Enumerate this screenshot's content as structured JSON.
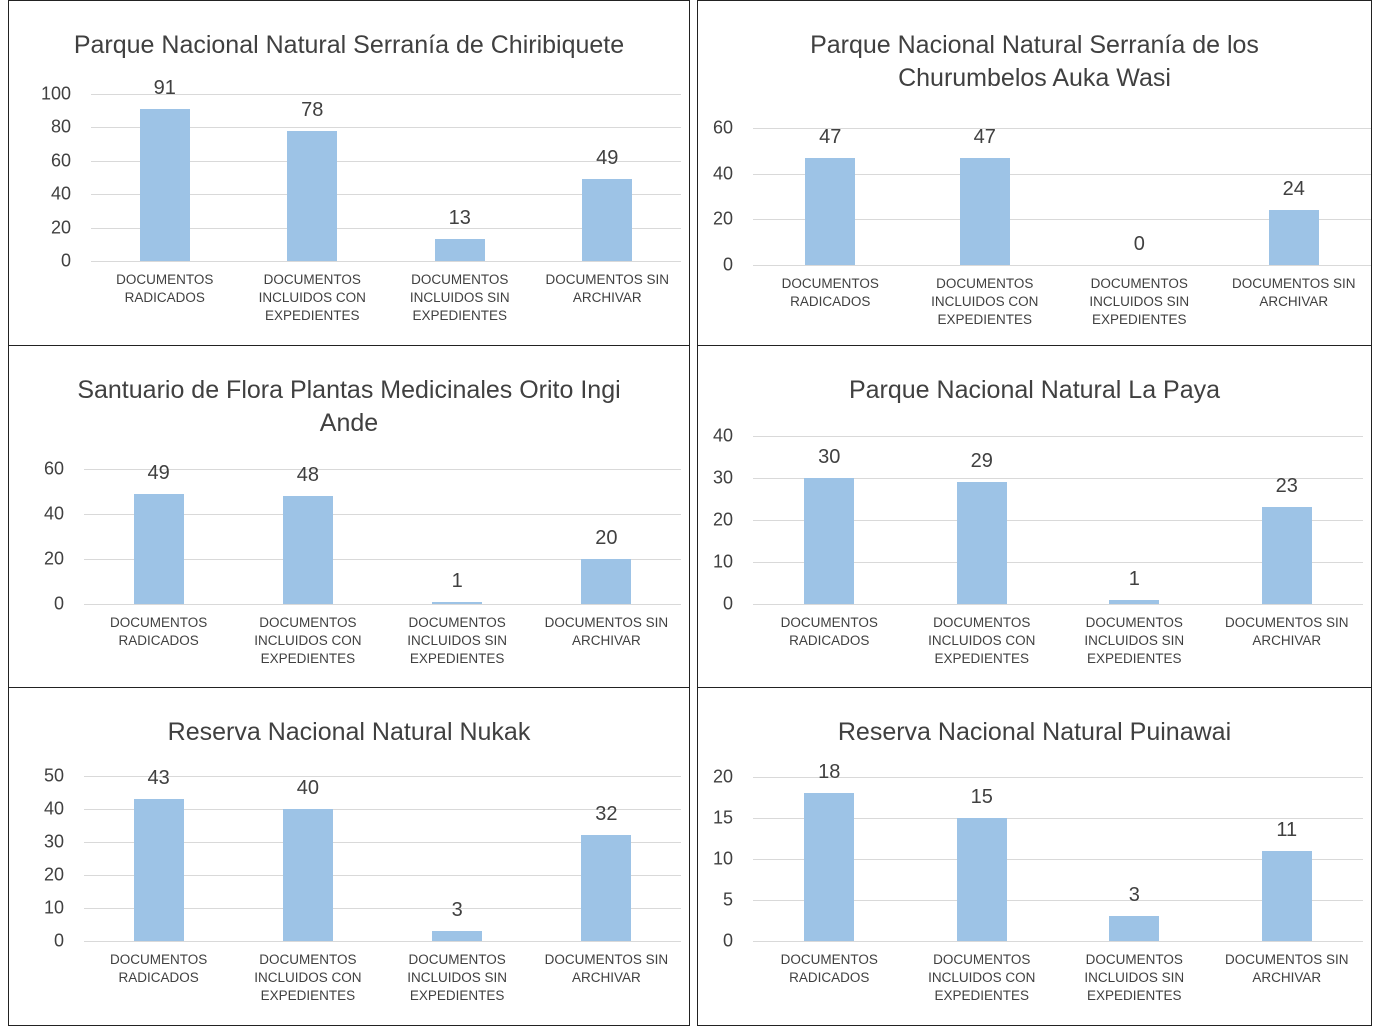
{
  "chart_data": [
    {
      "type": "bar",
      "title": "Parque Nacional Natural Serranía de Chiribiquete",
      "categories": [
        "DOCUMENTOS RADICADOS",
        "DOCUMENTOS INCLUIDOS CON EXPEDIENTES",
        "DOCUMENTOS INCLUIDOS SIN EXPEDIENTES",
        "DOCUMENTOS SIN ARCHIVAR"
      ],
      "values": [
        91,
        78,
        13,
        49
      ],
      "color": "#9dc3e6",
      "ylim": [
        0,
        100
      ],
      "yticks": [
        0,
        20,
        40,
        60,
        80,
        100
      ],
      "grid": true
    },
    {
      "type": "bar",
      "title": "Parque Nacional Natural Serranía de los Churumbelos Auka Wasi",
      "categories": [
        "DOCUMENTOS RADICADOS",
        "DOCUMENTOS INCLUIDOS CON EXPEDIENTES",
        "DOCUMENTOS INCLUIDOS SIN EXPEDIENTES",
        "DOCUMENTOS SIN ARCHIVAR"
      ],
      "values": [
        47,
        47,
        0,
        24
      ],
      "color": "#9dc3e6",
      "ylim": [
        0,
        60
      ],
      "yticks": [
        0,
        20,
        40,
        60
      ],
      "grid": true
    },
    {
      "type": "bar",
      "title": "Santuario de Flora Plantas Medicinales Orito Ingi Ande",
      "categories": [
        "DOCUMENTOS RADICADOS",
        "DOCUMENTOS INCLUIDOS CON EXPEDIENTES",
        "DOCUMENTOS INCLUIDOS SIN EXPEDIENTES",
        "DOCUMENTOS SIN ARCHIVAR"
      ],
      "values": [
        49,
        48,
        1,
        20
      ],
      "color": "#9dc3e6",
      "ylim": [
        0,
        60
      ],
      "yticks": [
        0,
        20,
        40,
        60
      ],
      "grid": true
    },
    {
      "type": "bar",
      "title": "Parque Nacional Natural La Paya",
      "categories": [
        "DOCUMENTOS RADICADOS",
        "DOCUMENTOS INCLUIDOS CON EXPEDIENTES",
        "DOCUMENTOS INCLUIDOS SIN EXPEDIENTES",
        "DOCUMENTOS SIN ARCHIVAR"
      ],
      "values": [
        30,
        29,
        1,
        23
      ],
      "color": "#9dc3e6",
      "ylim": [
        0,
        40
      ],
      "yticks": [
        0,
        10,
        20,
        30,
        40
      ],
      "grid": true
    },
    {
      "type": "bar",
      "title": "Reserva Nacional Natural Nukak",
      "categories": [
        "DOCUMENTOS RADICADOS",
        "DOCUMENTOS INCLUIDOS CON EXPEDIENTES",
        "DOCUMENTOS INCLUIDOS SIN EXPEDIENTES",
        "DOCUMENTOS SIN ARCHIVAR"
      ],
      "values": [
        43,
        40,
        3,
        32
      ],
      "color": "#9dc3e6",
      "ylim": [
        0,
        50
      ],
      "yticks": [
        0,
        10,
        20,
        30,
        40,
        50
      ],
      "grid": true
    },
    {
      "type": "bar",
      "title": "Reserva Nacional Natural Puinawai",
      "categories": [
        "DOCUMENTOS RADICADOS",
        "DOCUMENTOS INCLUIDOS CON EXPEDIENTES",
        "DOCUMENTOS INCLUIDOS SIN EXPEDIENTES",
        "DOCUMENTOS SIN ARCHIVAR"
      ],
      "values": [
        18,
        15,
        3,
        11
      ],
      "color": "#9dc3e6",
      "ylim": [
        0,
        20
      ],
      "yticks": [
        0,
        5,
        10,
        15,
        20
      ],
      "grid": true
    }
  ]
}
